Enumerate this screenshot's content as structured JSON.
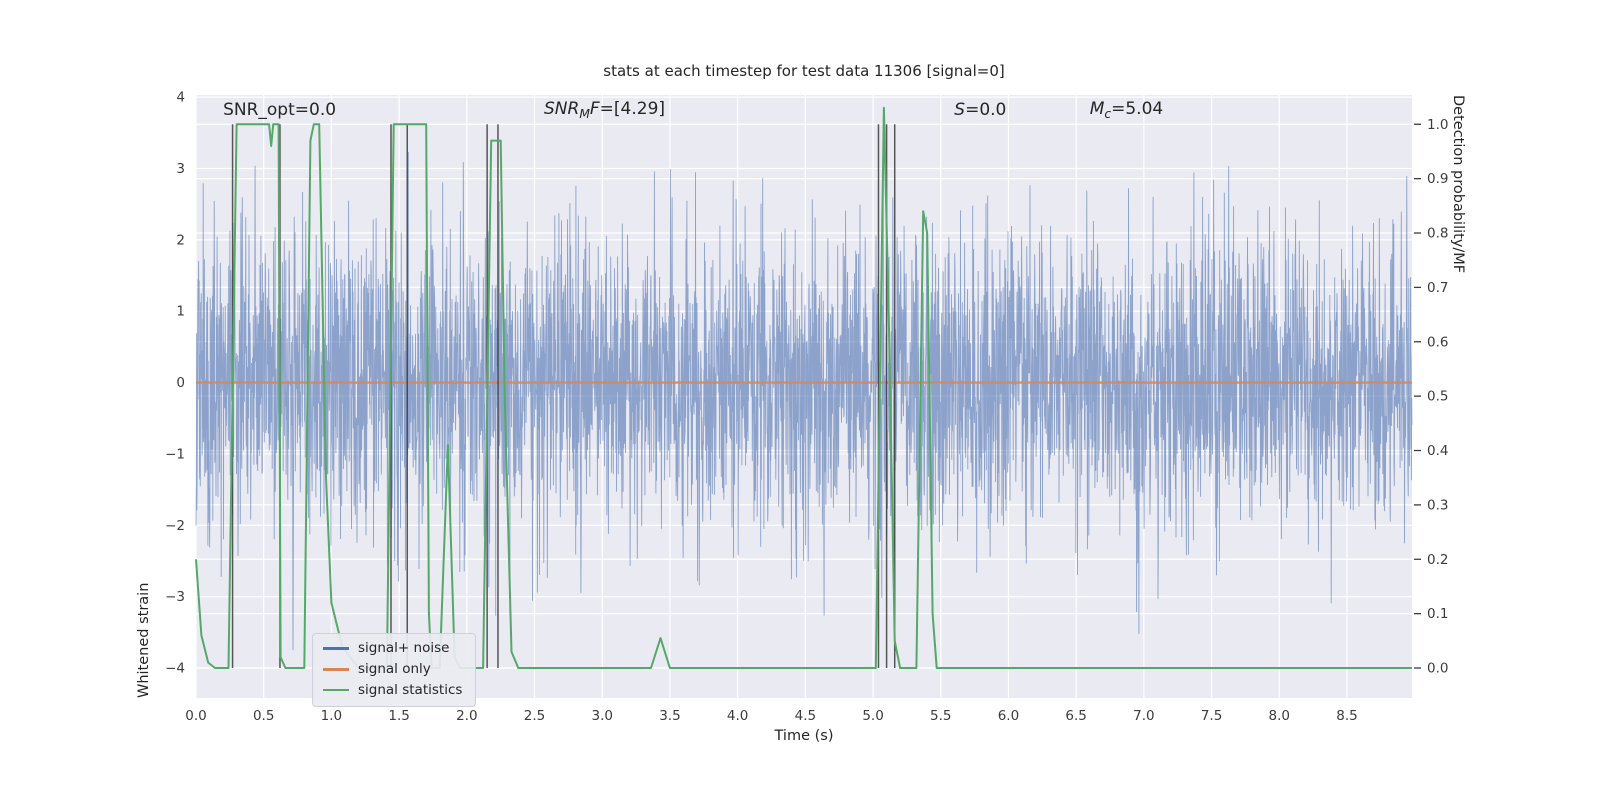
{
  "title": "stats at each timestep for test data 11306 [signal=0]",
  "axes": {
    "xlabel": "Time (s)",
    "ylabel_left": "Whitened strain",
    "ylabel_right": "Detection probability/MF",
    "xlim": [
      0,
      8.98
    ],
    "ylim_left": [
      -4.42,
      4.03
    ],
    "xticks": [
      0.0,
      0.5,
      1.0,
      1.5,
      2.0,
      2.5,
      3.0,
      3.5,
      4.0,
      4.5,
      5.0,
      5.5,
      6.0,
      6.5,
      7.0,
      7.5,
      8.0,
      8.5
    ],
    "yticks_left": [
      -4,
      -3,
      -2,
      -1,
      0,
      1,
      2,
      3,
      4
    ],
    "yticks_right": [
      0.0,
      0.1,
      0.2,
      0.3,
      0.4,
      0.5,
      0.6,
      0.7,
      0.8,
      0.9,
      1.0
    ],
    "colors": {
      "background": "#eaeaf2",
      "grid": "#ffffff",
      "text": "#3c3c3c"
    }
  },
  "chart_data": {
    "type": "line",
    "title": "stats at each timestep for test data 11306 [signal=0]",
    "xlabel": "Time (s)",
    "ylabel_left": "Whitened strain",
    "ylabel_right": "Detection probability/MF",
    "xlim": [
      0,
      8.98
    ],
    "right_axis_map": {
      "p0_strain": -4.0,
      "p1_strain": 3.62
    },
    "series": [
      {
        "name": "signal+ noise",
        "color": "#4c72b0",
        "opacity": 0.6,
        "kind": "noise",
        "noise": {
          "n": 4200,
          "std": 1.05,
          "clip": 3.75,
          "seed": 11306,
          "t_start": 0,
          "t_end": 8.98
        }
      },
      {
        "name": "signal only",
        "color": "#dd8452",
        "opacity": 0.9,
        "kind": "constant",
        "value": 0.0
      },
      {
        "name": "signal statistics",
        "color": "#55a868",
        "opacity": 1.0,
        "kind": "points_prob",
        "points": [
          [
            0.0,
            0.2
          ],
          [
            0.04,
            0.06
          ],
          [
            0.09,
            0.01
          ],
          [
            0.14,
            0.0
          ],
          [
            0.24,
            0.0
          ],
          [
            0.3,
            1.0
          ],
          [
            0.54,
            1.0
          ],
          [
            0.555,
            0.96
          ],
          [
            0.57,
            1.0
          ],
          [
            0.61,
            1.0
          ],
          [
            0.625,
            0.02
          ],
          [
            0.66,
            0.0
          ],
          [
            0.8,
            0.0
          ],
          [
            0.845,
            0.97
          ],
          [
            0.87,
            1.0
          ],
          [
            0.91,
            1.0
          ],
          [
            0.96,
            0.35
          ],
          [
            1.0,
            0.12
          ],
          [
            1.08,
            0.04
          ],
          [
            1.2,
            0.0
          ],
          [
            1.41,
            0.0
          ],
          [
            1.46,
            1.0
          ],
          [
            1.66,
            1.0
          ],
          [
            1.7,
            1.0
          ],
          [
            1.72,
            0.1
          ],
          [
            1.74,
            0.0
          ],
          [
            1.8,
            0.0
          ],
          [
            1.86,
            0.41
          ],
          [
            1.91,
            0.02
          ],
          [
            1.95,
            0.0
          ],
          [
            2.12,
            0.0
          ],
          [
            2.18,
            0.97
          ],
          [
            2.25,
            0.97
          ],
          [
            2.28,
            0.5
          ],
          [
            2.33,
            0.03
          ],
          [
            2.38,
            0.0
          ],
          [
            3.36,
            0.0
          ],
          [
            3.43,
            0.055
          ],
          [
            3.5,
            0.0
          ],
          [
            5.02,
            0.0
          ],
          [
            5.08,
            1.03
          ],
          [
            5.12,
            0.6
          ],
          [
            5.16,
            0.05
          ],
          [
            5.2,
            0.0
          ],
          [
            5.32,
            0.0
          ],
          [
            5.37,
            0.84
          ],
          [
            5.4,
            0.8
          ],
          [
            5.44,
            0.1
          ],
          [
            5.47,
            0.0
          ],
          [
            8.98,
            0.0
          ]
        ]
      }
    ],
    "vlines": {
      "color": "#3c3c3c",
      "opacity": 0.85,
      "positions": [
        0.27,
        0.62,
        1.44,
        1.56,
        2.15,
        2.23,
        5.04,
        5.1,
        5.16
      ],
      "span_prob": [
        0.0,
        1.0
      ]
    }
  },
  "annotations": [
    {
      "name": "snr-opt",
      "t": 0.2,
      "strain": 3.82,
      "parts": [
        {
          "t": "SNR_opt=0.0",
          "i": false
        }
      ]
    },
    {
      "name": "snr-mf",
      "t": 2.57,
      "strain": 3.82,
      "parts": [
        {
          "t": "SNR",
          "i": true
        },
        {
          "t": "M",
          "i": true,
          "sub": true
        },
        {
          "t": "F",
          "i": true
        },
        {
          "t": "=[4.29]",
          "i": false
        }
      ]
    },
    {
      "name": "s-stat",
      "t": 5.6,
      "strain": 3.82,
      "parts": [
        {
          "t": "S",
          "i": true
        },
        {
          "t": "=0.0",
          "i": false
        }
      ]
    },
    {
      "name": "chirp-mass",
      "t": 6.6,
      "strain": 3.82,
      "parts": [
        {
          "t": "M",
          "i": true
        },
        {
          "t": "c",
          "i": true,
          "sub": true
        },
        {
          "t": "=5.04",
          "i": false
        }
      ]
    }
  ],
  "legend": {
    "items": [
      {
        "label": "signal+ noise",
        "color": "#4c72b0"
      },
      {
        "label": "signal only",
        "color": "#dd8452"
      },
      {
        "label": "signal statistics",
        "color": "#55a868"
      }
    ]
  }
}
